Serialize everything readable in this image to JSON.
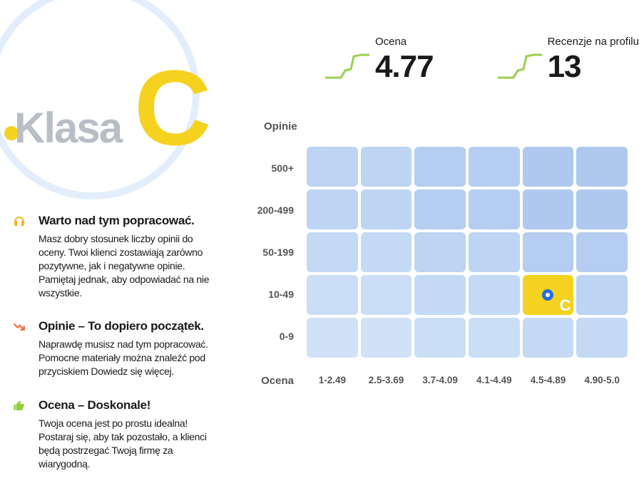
{
  "klasa": {
    "prefix": "Klasa",
    "grade": "C",
    "grade_color": "#f5d21f",
    "ring_color": "#e3eefc",
    "prefix_color": "#b8bec5"
  },
  "metrics": {
    "ocena": {
      "label": "Ocena",
      "value": "4.77"
    },
    "recenzje": {
      "label": "Recenzje na profilu",
      "value": "13"
    },
    "spark_color": "#9ad14f"
  },
  "hints": [
    {
      "icon": "headphones",
      "icon_color": "#f5b21f",
      "title": "Warto nad tym popracować.",
      "body": "Masz dobry stosunek liczby opinii do oceny. Twoi klienci zostawiają zarówno pozytywne, jak i negatywne opinie. Pamiętaj jednak, aby odpowiadać na nie wszystkie."
    },
    {
      "icon": "trend-down",
      "icon_color": "#ff6a3d",
      "title": "Opinie – To dopiero początek.",
      "body": "Naprawdę musisz nad tym popracować. Pomocne materiały można znaleźć pod przyciskiem Dowiedz się więcej."
    },
    {
      "icon": "thumbs-up",
      "icon_color": "#8fcf3c",
      "title": "Ocena – Doskonale!",
      "body": "Twoja ocena jest po prostu idealna! Postaraj się, aby tak pozostało, a klienci będą postrzegać Twoją firmę za wiarygodną."
    }
  ],
  "heatmap": {
    "y_title": "Opinie",
    "x_title": "Ocena",
    "row_labels": [
      "500+",
      "200-499",
      "50-199",
      "10-49",
      "0-9"
    ],
    "col_labels": [
      "1-2.49",
      "2.5-3.69",
      "3.7-4.09",
      "4.1-4.49",
      "4.5-4.89",
      "4.90-5.0"
    ],
    "rows": 5,
    "cols": 6,
    "cell_colors": [
      [
        "#bdd4f2",
        "#bdd4f2",
        "#b4cdf0",
        "#b4cdf0",
        "#aec8ee",
        "#aec8ee"
      ],
      [
        "#bdd4f2",
        "#bdd4f2",
        "#b4cdf0",
        "#b4cdf0",
        "#aec8ee",
        "#aec8ee"
      ],
      [
        "#c3d9f4",
        "#c3d9f4",
        "#bdd4f2",
        "#bdd4f2",
        "#b4cdf0",
        "#b4cdf0"
      ],
      [
        "#cadef5",
        "#cadef5",
        "#c3d9f4",
        "#c3d9f4",
        "#bdd4f2",
        "#bdd4f2"
      ],
      [
        "#d0e2f7",
        "#d0e2f7",
        "#cadef5",
        "#cadef5",
        "#c3d9f4",
        "#c3d9f4"
      ]
    ],
    "marker": {
      "row": 3,
      "col": 4,
      "letter": "C",
      "ring_color": "#1f6fe0",
      "bg": "#f5d21f"
    }
  }
}
